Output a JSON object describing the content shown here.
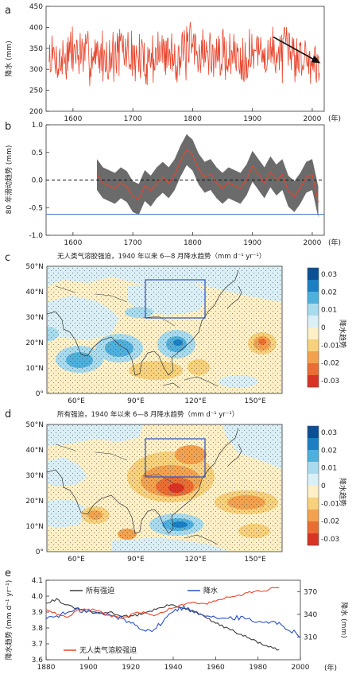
{
  "figure": {
    "panel_letters": [
      "a",
      "b",
      "c",
      "d",
      "e"
    ],
    "year_unit": "(年)"
  },
  "chart_data": [
    {
      "panel": "a",
      "type": "line",
      "ylabel": "降水 (mm)",
      "xlim": [
        1555,
        2020
      ],
      "ylim": [
        200,
        450
      ],
      "xticks": [
        1600,
        1700,
        1800,
        1900,
        2000
      ],
      "yticks": [
        200,
        250,
        300,
        350,
        400,
        450
      ],
      "series": [
        {
          "x": [
            1560,
            1580,
            1600,
            1620,
            1640,
            1660,
            1680,
            1700,
            1720,
            1740,
            1760,
            1780,
            1800,
            1820,
            1840,
            1860,
            1880,
            1900,
            1920,
            1940,
            1960,
            1980,
            2000,
            2012
          ],
          "y": [
            330,
            320,
            345,
            330,
            335,
            325,
            345,
            330,
            320,
            335,
            340,
            330,
            350,
            340,
            330,
            335,
            330,
            340,
            335,
            340,
            340,
            330,
            320,
            320
          ],
          "color": "#e8452c"
        }
      ],
      "annotations": [
        {
          "type": "arrow",
          "from": [
            1935,
            377
          ],
          "to": [
            2012,
            316
          ],
          "color": "#111111"
        }
      ]
    },
    {
      "panel": "b",
      "type": "line",
      "ylabel": "80 年滑动趋势 (mm)",
      "xlim": [
        1555,
        2020
      ],
      "ylim": [
        -1.0,
        1.0
      ],
      "xticks": [
        1600,
        1700,
        1800,
        1900,
        2000
      ],
      "yticks": [
        -1.0,
        -0.5,
        0.0,
        0.5,
        1.0
      ],
      "series": [
        {
          "x": [
            1640,
            1650,
            1660,
            1670,
            1680,
            1690,
            1700,
            1710,
            1720,
            1730,
            1740,
            1750,
            1760,
            1770,
            1780,
            1790,
            1800,
            1810,
            1820,
            1830,
            1840,
            1850,
            1860,
            1870,
            1880,
            1890,
            1900,
            1910,
            1920,
            1930,
            1940,
            1950,
            1960,
            1970,
            1980,
            1990,
            2000,
            2010
          ],
          "y": [
            0.1,
            -0.05,
            -0.1,
            -0.15,
            -0.05,
            -0.12,
            -0.3,
            -0.35,
            -0.1,
            -0.2,
            -0.05,
            0.05,
            -0.05,
            0.1,
            0.35,
            0.55,
            0.45,
            0.2,
            0.05,
            0.1,
            -0.05,
            -0.15,
            -0.05,
            -0.1,
            -0.15,
            0.0,
            0.25,
            0.1,
            -0.05,
            0.15,
            0.0,
            0.1,
            -0.2,
            -0.3,
            -0.15,
            0.05,
            0.1,
            -0.4
          ],
          "color": "#e8452c"
        }
      ],
      "band": {
        "halfwidth": 0.28,
        "color": "#6b6b6b"
      },
      "reference_lines": [
        {
          "y": 0.0,
          "style": "dashed",
          "color": "#111111"
        },
        {
          "y": -0.62,
          "style": "solid",
          "color": "#3a6fc0"
        }
      ]
    },
    {
      "panel": "c",
      "type": "heatmap",
      "title": "无人类气溶胶强迫，1940 年以来 6—8 月降水趋势（mm d⁻¹ yr⁻¹）",
      "xticks": [
        "60°E",
        "90°E",
        "120°E",
        "150°E"
      ],
      "yticks": [
        "0°",
        "10°N",
        "20°N",
        "30°N",
        "40°N",
        "50°N"
      ],
      "colorbar": {
        "label": "降水趋势",
        "ticks": [
          "0.03",
          "0.02",
          "0.01",
          "0",
          "-0.01",
          "-0.02",
          "-0.03"
        ],
        "colors": [
          "#0b4f94",
          "#1c7fc4",
          "#4fb0dd",
          "#a9dbee",
          "#daf0f6",
          "#fdf0c6",
          "#f7d17c",
          "#f2a24f",
          "#ea6d33",
          "#d93325"
        ]
      },
      "box": {
        "lon": [
          95,
          125
        ],
        "lat": [
          30,
          44
        ]
      }
    },
    {
      "panel": "d",
      "type": "heatmap",
      "title": "所有强迫，1940 年以来 6—8 月降水趋势（mm d⁻¹ yr⁻¹）",
      "xticks": [
        "60°E",
        "90°E",
        "120°E",
        "150°E"
      ],
      "yticks": [
        "0°",
        "10°N",
        "20°N",
        "30°N",
        "40°N",
        "50°N"
      ],
      "colorbar": {
        "label": "降水趋势",
        "ticks": [
          "0.03",
          "0.02",
          "0.01",
          "0",
          "-0.01",
          "-0.02",
          "-0.03"
        ],
        "colors": [
          "#0b4f94",
          "#1c7fc4",
          "#4fb0dd",
          "#a9dbee",
          "#daf0f6",
          "#fdf0c6",
          "#f7d17c",
          "#f2a24f",
          "#ea6d33",
          "#d93325"
        ]
      },
      "box": {
        "lon": [
          95,
          125
        ],
        "lat": [
          30,
          44
        ]
      }
    },
    {
      "panel": "e",
      "type": "line",
      "ylabel_left": "降水趋势 (mm d⁻¹ yr⁻¹)",
      "ylabel_right": "降水 (mm)",
      "xlim": [
        1880,
        2000
      ],
      "ylim_left": [
        3.6,
        4.1
      ],
      "ylim_right": [
        280,
        385
      ],
      "xticks": [
        1880,
        1900,
        1920,
        1940,
        1960,
        1980,
        2000
      ],
      "yticks_left": [
        3.6,
        3.7,
        3.8,
        3.9,
        4.0,
        4.1
      ],
      "yticks_right": [
        310,
        340,
        370
      ],
      "legend": {
        "all": "所有强迫",
        "precip": "降水",
        "no_aerosol": "无人类气溶胶强迫"
      },
      "series": [
        {
          "key": "all",
          "axis": "left",
          "color": "#3a3a3a",
          "x": [
            1880,
            1885,
            1890,
            1895,
            1900,
            1905,
            1910,
            1915,
            1920,
            1925,
            1930,
            1935,
            1940,
            1945,
            1950,
            1955,
            1960,
            1965,
            1970,
            1975,
            1980,
            1985,
            1990
          ],
          "y": [
            3.96,
            3.98,
            3.94,
            3.92,
            3.9,
            3.89,
            3.9,
            3.88,
            3.87,
            3.89,
            3.91,
            3.93,
            3.95,
            3.92,
            3.9,
            3.87,
            3.83,
            3.8,
            3.77,
            3.74,
            3.71,
            3.68,
            3.66
          ]
        },
        {
          "key": "precip",
          "axis": "right",
          "color": "#2b4fc9",
          "x": [
            1880,
            1885,
            1890,
            1895,
            1900,
            1905,
            1910,
            1915,
            1920,
            1925,
            1930,
            1935,
            1940,
            1945,
            1950,
            1955,
            1960,
            1965,
            1970,
            1975,
            1980,
            1985,
            1990,
            1995,
            2000
          ],
          "y": [
            335,
            338,
            342,
            346,
            344,
            341,
            339,
            335,
            329,
            322,
            318,
            330,
            345,
            349,
            344,
            340,
            336,
            333,
            336,
            334,
            330,
            331,
            327,
            320,
            312
          ]
        },
        {
          "key": "no_aerosol",
          "axis": "left",
          "color": "#e8452c",
          "x": [
            1880,
            1885,
            1890,
            1895,
            1900,
            1905,
            1910,
            1915,
            1920,
            1925,
            1930,
            1935,
            1940,
            1945,
            1950,
            1955,
            1960,
            1965,
            1970,
            1975,
            1980,
            1985,
            1990
          ],
          "y": [
            3.92,
            3.89,
            3.87,
            3.91,
            3.92,
            3.9,
            3.88,
            3.86,
            3.88,
            3.9,
            3.88,
            3.9,
            3.93,
            3.95,
            3.96,
            3.95,
            3.97,
            3.99,
            4.0,
            4.02,
            4.03,
            4.04,
            4.06
          ]
        }
      ]
    }
  ]
}
